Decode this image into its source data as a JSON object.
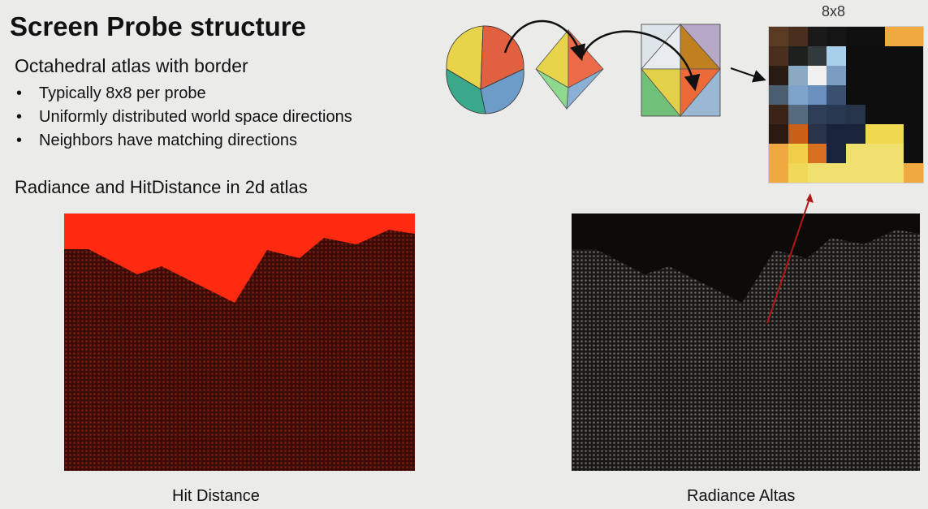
{
  "title": "Screen Probe structure",
  "subtitle": "Octahedral atlas with border",
  "bullets": [
    "Typically 8x8 per probe",
    "Uniformly distributed world space directions",
    "Neighbors have matching directions"
  ],
  "section": "Radiance and HitDistance in 2d atlas",
  "grid_label": "8x8",
  "captions": {
    "hit": "Hit Distance",
    "radiance": "Radiance Altas"
  },
  "colors": {
    "hit_sky": "#ff2a10",
    "hit_ground": "#3a0c08",
    "background": "#ebebea"
  },
  "grid_cells": [
    [
      "#5a3a22",
      "#4a2e1e",
      "#1a1a1a",
      "#151515",
      "#101010",
      "#101010",
      "#f0a840",
      "#f0a840"
    ],
    [
      "#4a2e1e",
      "#1e201e",
      "#333a3d",
      "#a8d0ea",
      "#0e0e0e",
      "#0e0e0e",
      "#0e0e0e",
      "#0e0e0e"
    ],
    [
      "#2a1a14",
      "#8aaac4",
      "#f0f0f0",
      "#7a9cc0",
      "#0e0e0e",
      "#0e0e0e",
      "#0e0e0e",
      "#0e0e0e"
    ],
    [
      "#4a5e70",
      "#7ea4cc",
      "#6a90c0",
      "#3a5070",
      "#0e0e0e",
      "#0e0e0e",
      "#0e0e0e",
      "#0e0e0e"
    ],
    [
      "#3a2418",
      "#566a80",
      "#2e3e58",
      "#283850",
      "#26344a",
      "#0e0e0e",
      "#0e0e0e",
      "#0e0e0e"
    ],
    [
      "#2a1a12",
      "#c86018",
      "#2a3448",
      "#1a2438",
      "#1a2438",
      "#f0d850",
      "#f0d850",
      "#0e0e0e"
    ],
    [
      "#f0a840",
      "#f0d048",
      "#d87020",
      "#1a2438",
      "#f0e070",
      "#f0e070",
      "#f0e070",
      "#0e0e0e"
    ],
    [
      "#f0a840",
      "#f0d858",
      "#f0e070",
      "#f0e070",
      "#f0e070",
      "#f0e070",
      "#f0e070",
      "#f0a840"
    ]
  ]
}
